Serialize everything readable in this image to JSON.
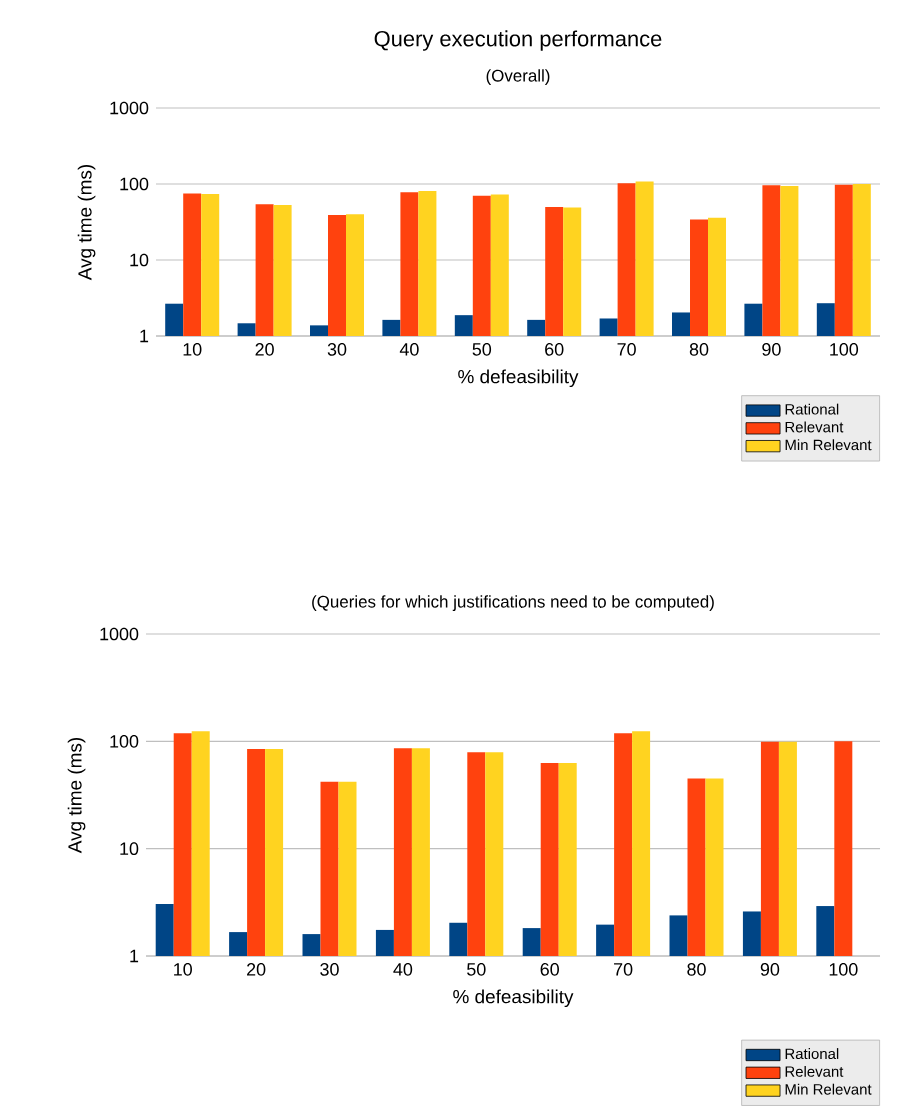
{
  "chart_data": [
    {
      "type": "bar",
      "title": "Query execution performance",
      "subtitle": "(Overall)",
      "xlabel": "% defeasibility",
      "ylabel": "Avg time (ms)",
      "log": "y",
      "grid": "y",
      "legend": "bottom right",
      "categories": [
        "10",
        "20",
        "30",
        "40",
        "50",
        "60",
        "70",
        "80",
        "90",
        "100"
      ],
      "ylim": [
        1,
        1000
      ],
      "yticks": [
        1,
        10,
        100,
        1000
      ],
      "series": [
        {
          "name": "Rational",
          "color": "#004586",
          "values": [
            2.66,
            1.47,
            1.38,
            1.63,
            1.88,
            1.63,
            1.7,
            2.04,
            2.66,
            2.7
          ]
        },
        {
          "name": "Relevant",
          "color": "#ff420e",
          "values": [
            75,
            54,
            39,
            78,
            70,
            50,
            102,
            34,
            96,
            98
          ]
        },
        {
          "name": "Min Relevant",
          "color": "#ffd320",
          "values": [
            74,
            53,
            40,
            81,
            73,
            49,
            108,
            36,
            94,
            100
          ]
        }
      ]
    },
    {
      "type": "bar",
      "subtitle": "(Queries for which justifications need to be computed)",
      "xlabel": "% defeasibility",
      "ylabel": "Avg time (ms)",
      "log": "y",
      "grid": "y",
      "legend": "bottom right",
      "categories": [
        "10",
        "20",
        "30",
        "40",
        "50",
        "60",
        "70",
        "80",
        "90",
        "100"
      ],
      "ylim": [
        1,
        1000
      ],
      "yticks": [
        1,
        10,
        100,
        1000
      ],
      "series": [
        {
          "name": "Rational",
          "color": "#004586",
          "values": [
            3.05,
            1.67,
            1.6,
            1.75,
            2.04,
            1.82,
            1.96,
            2.39,
            2.6,
            2.92
          ]
        },
        {
          "name": "Relevant",
          "color": "#ff420e",
          "values": [
            119,
            85,
            42,
            86,
            79,
            63,
            119,
            45,
            99,
            100
          ]
        },
        {
          "name": "Min Relevant",
          "color": "#ffd320",
          "values": [
            124,
            85,
            42,
            86,
            79,
            63,
            124,
            45,
            99,
            null
          ]
        }
      ]
    }
  ]
}
